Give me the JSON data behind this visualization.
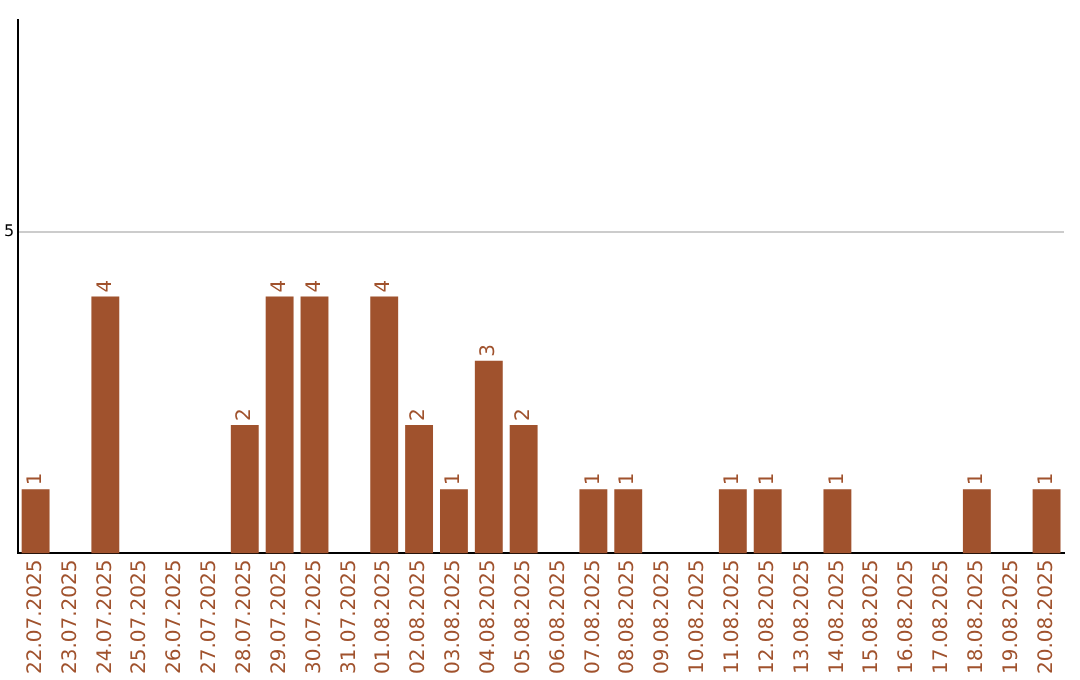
{
  "chart_data": {
    "type": "bar",
    "categories": [
      "22.07.2025",
      "23.07.2025",
      "24.07.2025",
      "25.07.2025",
      "26.07.2025",
      "27.07.2025",
      "28.07.2025",
      "29.07.2025",
      "30.07.2025",
      "31.07.2025",
      "01.08.2025",
      "02.08.2025",
      "03.08.2025",
      "04.08.2025",
      "05.08.2025",
      "06.08.2025",
      "07.08.2025",
      "08.08.2025",
      "09.08.2025",
      "10.08.2025",
      "11.08.2025",
      "12.08.2025",
      "13.08.2025",
      "14.08.2025",
      "15.08.2025",
      "16.08.2025",
      "17.08.2025",
      "18.08.2025",
      "19.08.2025",
      "20.08.2025"
    ],
    "values": [
      1,
      0,
      4,
      0,
      0,
      0,
      2,
      4,
      4,
      0,
      4,
      2,
      1,
      3,
      2,
      0,
      1,
      1,
      0,
      0,
      1,
      1,
      0,
      1,
      0,
      0,
      0,
      1,
      0,
      1
    ],
    "value_labels": [
      "1",
      null,
      "4",
      null,
      null,
      null,
      "2",
      "4",
      "4",
      null,
      "4",
      "2",
      "1",
      "3",
      "2",
      null,
      "1",
      "1",
      null,
      null,
      "1",
      "1",
      null,
      "1",
      null,
      null,
      null,
      "1",
      null,
      "1"
    ],
    "color": "#a0522d",
    "ylim": [
      0,
      8.3
    ],
    "yticks": [
      5
    ],
    "grid": "y",
    "legend": false
  }
}
